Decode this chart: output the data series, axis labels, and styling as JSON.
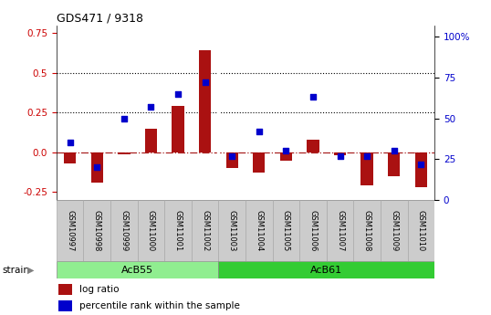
{
  "title": "GDS471 / 9318",
  "samples": [
    "GSM10997",
    "GSM10998",
    "GSM10999",
    "GSM11000",
    "GSM11001",
    "GSM11002",
    "GSM11003",
    "GSM11004",
    "GSM11005",
    "GSM11006",
    "GSM11007",
    "GSM11008",
    "GSM11009",
    "GSM11010"
  ],
  "log_ratio": [
    -0.07,
    -0.19,
    -0.01,
    0.15,
    0.29,
    0.64,
    -0.1,
    -0.13,
    -0.05,
    0.08,
    -0.02,
    -0.21,
    -0.15,
    -0.22
  ],
  "percentile": [
    35,
    20,
    50,
    57,
    65,
    72,
    27,
    42,
    30,
    63,
    27,
    27,
    30,
    22
  ],
  "groups": [
    {
      "label": "AcB55",
      "start": 0,
      "end": 5,
      "color": "#90ee90"
    },
    {
      "label": "AcB61",
      "start": 6,
      "end": 13,
      "color": "#3dd43d"
    }
  ],
  "ylim_left": [
    -0.3,
    0.8
  ],
  "ylim_right": [
    0,
    107
  ],
  "hlines": [
    0.25,
    0.5
  ],
  "zero_line": 0.0,
  "bar_color": "#aa1111",
  "dot_color": "#0000cc",
  "dotted_line_color": "black",
  "zero_dashed_color": "#aa2222",
  "right_ticks": [
    0,
    25,
    50,
    75,
    100
  ],
  "right_tick_labels": [
    "0",
    "25",
    "50",
    "75",
    "100%"
  ],
  "left_ticks": [
    -0.25,
    0.0,
    0.25,
    0.5,
    0.75
  ],
  "legend_items": [
    "log ratio",
    "percentile rank within the sample"
  ],
  "strain_label": "strain",
  "separator_idx": 5.5,
  "label_color_left": "#cc0000",
  "label_color_right": "#0000cc",
  "box_gray": "#cccccc",
  "box_edge": "#aaaaaa",
  "group_acb55_color": "#90ee90",
  "group_acb61_color": "#33cc33"
}
